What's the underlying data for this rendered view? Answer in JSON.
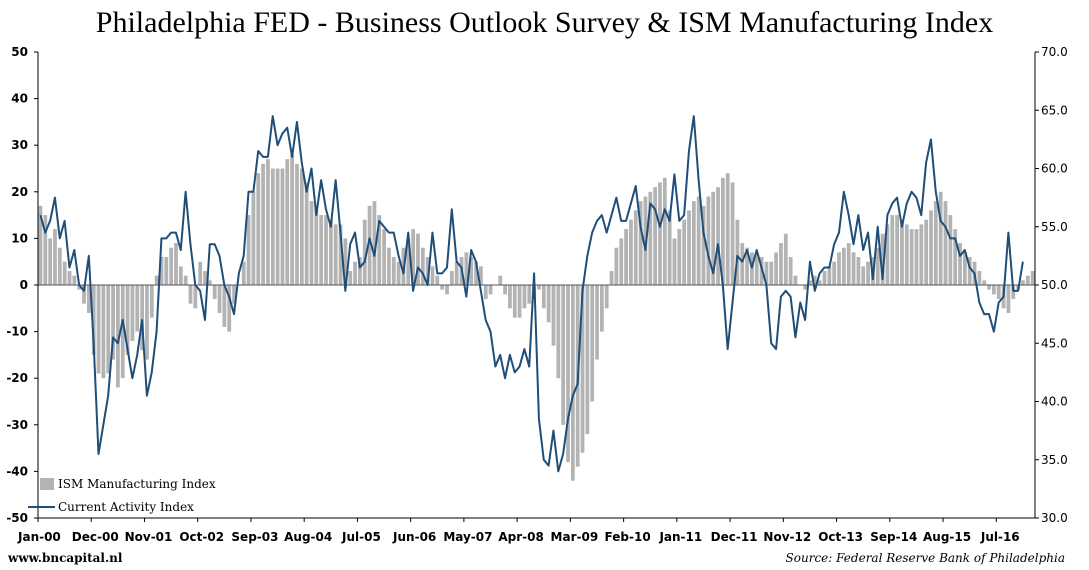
{
  "chart_data": {
    "type": "bar+line",
    "title": "Philadelphia FED - Business Outlook Survey & ISM Manufacturing Index",
    "left_axis": {
      "ylim": [
        -50,
        50
      ],
      "ticks": [
        50,
        40,
        30,
        20,
        10,
        0,
        -10,
        -20,
        -30,
        -40,
        -50
      ]
    },
    "right_axis": {
      "ylim": [
        30.0,
        70.0
      ],
      "ticks": [
        "70.0",
        "65.0",
        "60.0",
        "55.0",
        "50.0",
        "45.0",
        "40.0",
        "35.0",
        "30.0"
      ]
    },
    "x_ticks": [
      "Jan-00",
      "Dec-00",
      "Nov-01",
      "Oct-02",
      "Sep-03",
      "Aug-04",
      "Jul-05",
      "Jun-06",
      "May-07",
      "Apr-08",
      "Mar-09",
      "Feb-10",
      "Jan-11",
      "Dec-11",
      "Nov-12",
      "Oct-13",
      "Sep-14",
      "Aug-15",
      "Jul-16"
    ],
    "series": [
      {
        "name": "ISM Manufacturing Index",
        "kind": "bar",
        "axis": "left",
        "color": "#b3b3b3",
        "values": [
          17,
          15,
          10,
          12,
          8,
          5,
          3,
          2,
          -1,
          -4,
          -6,
          -15,
          -19,
          -20,
          -19,
          -16,
          -22,
          -20,
          -15,
          -12,
          -10,
          -14,
          -16,
          -7,
          2,
          6,
          6,
          8,
          9,
          4,
          2,
          -4,
          -5,
          5,
          3,
          1,
          -3,
          -6,
          -9,
          -10,
          -4,
          0,
          5,
          15,
          20,
          24,
          26,
          27,
          25,
          25,
          25,
          27,
          28,
          26,
          25,
          22,
          18,
          17,
          15,
          15,
          14,
          13,
          13,
          10,
          3,
          5,
          6,
          14,
          17,
          18,
          15,
          12,
          8,
          6,
          5,
          8,
          10,
          12,
          11,
          8,
          6,
          4,
          2,
          -1,
          -2,
          3,
          5,
          6,
          7,
          6,
          5,
          4,
          -3,
          -2,
          0,
          2,
          -2,
          -5,
          -7,
          -7,
          -5,
          -4,
          -3,
          -1,
          -5,
          -8,
          -13,
          -20,
          -30,
          -38,
          -42,
          -39,
          -36,
          -32,
          -25,
          -16,
          -10,
          -5,
          3,
          8,
          10,
          12,
          14,
          16,
          18,
          19,
          20,
          21,
          22,
          23,
          16,
          10,
          12,
          14,
          16,
          18,
          19,
          17,
          19,
          20,
          21,
          23,
          24,
          22,
          14,
          9,
          8,
          7,
          7,
          6,
          5,
          5,
          7,
          9,
          11,
          6,
          2,
          0,
          -1,
          1,
          2,
          1,
          3,
          4,
          5,
          7,
          8,
          9,
          7,
          6,
          4,
          5,
          6,
          8,
          11,
          13,
          15,
          15,
          14,
          13,
          12,
          12,
          13,
          14,
          16,
          18,
          20,
          18,
          15,
          12,
          9,
          7,
          6,
          5,
          3,
          1,
          -1,
          -2,
          -3,
          -5,
          -6,
          -3,
          -1,
          1,
          2,
          3
        ]
      },
      {
        "name": "Current Activity Index",
        "kind": "line",
        "axis": "right",
        "color": "#1f4e79",
        "values": [
          56.0,
          54.5,
          55.5,
          57.5,
          54.0,
          55.5,
          51.5,
          53.0,
          50.0,
          49.5,
          52.5,
          45.0,
          35.5,
          38.0,
          40.5,
          45.5,
          45.0,
          47.0,
          44.5,
          42.0,
          44.0,
          47.0,
          40.5,
          42.5,
          46.0,
          54.0,
          54.0,
          54.5,
          54.5,
          53.0,
          58.0,
          53.5,
          50.0,
          49.5,
          47.0,
          53.5,
          53.5,
          52.5,
          50.0,
          49.0,
          47.5,
          51.0,
          52.5,
          58.0,
          58.0,
          61.5,
          61.0,
          61.0,
          64.5,
          62.0,
          63.0,
          63.5,
          61.0,
          64.0,
          60.5,
          58.0,
          60.0,
          56.0,
          59.0,
          56.5,
          55.0,
          59.0,
          54.5,
          49.5,
          53.5,
          54.5,
          51.5,
          52.0,
          54.0,
          52.5,
          55.5,
          55.0,
          54.5,
          54.5,
          52.5,
          51.0,
          54.5,
          49.5,
          51.5,
          51.0,
          50.0,
          54.5,
          51.0,
          51.0,
          51.5,
          56.5,
          52.0,
          51.5,
          49.0,
          53.0,
          52.0,
          49.5,
          47.0,
          46.0,
          43.0,
          44.0,
          42.0,
          44.0,
          42.5,
          43.0,
          44.5,
          43.0,
          51.0,
          38.5,
          35.0,
          34.5,
          37.5,
          34.0,
          35.5,
          38.5,
          40.5,
          41.5,
          49.5,
          52.5,
          54.5,
          55.5,
          56.0,
          54.5,
          56.0,
          57.5,
          55.5,
          55.5,
          57.0,
          58.5,
          55.0,
          53.0,
          57.0,
          56.5,
          55.0,
          56.5,
          55.5,
          59.5,
          55.5,
          56.0,
          61.5,
          64.5,
          59.0,
          54.5,
          52.5,
          51.0,
          53.5,
          50.0,
          44.5,
          48.5,
          52.5,
          52.0,
          53.0,
          51.5,
          53.0,
          51.5,
          50.0,
          45.0,
          44.5,
          49.0,
          49.5,
          49.0,
          45.5,
          48.5,
          47.0,
          52.0,
          49.5,
          51.0,
          51.5,
          51.5,
          53.5,
          54.5,
          58.0,
          56.0,
          53.5,
          56.0,
          53.0,
          54.5,
          50.5,
          55.0,
          50.5,
          56.0,
          57.0,
          57.5,
          55.0,
          57.0,
          58.0,
          57.5,
          56.0,
          60.5,
          62.5,
          58.0,
          55.5,
          55.0,
          54.0,
          54.0,
          52.5,
          53.0,
          51.5,
          51.0,
          48.5,
          47.5,
          47.5,
          46.0,
          48.5,
          49.0,
          54.5,
          49.5,
          49.5,
          52.0
        ]
      }
    ],
    "legend": {
      "position": "bottom-left"
    },
    "source_text": "Source: Federal Reserve Bank of Philadelphia",
    "site_text": "www.bncapital.nl"
  }
}
